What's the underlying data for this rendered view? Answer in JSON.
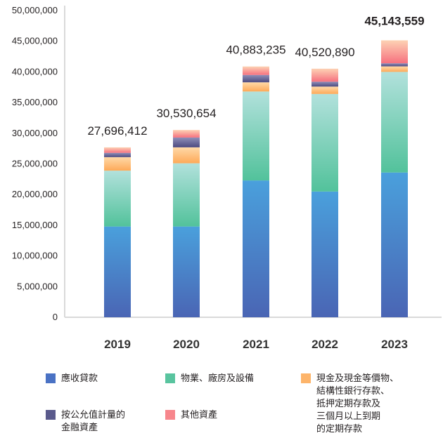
{
  "chart_data": {
    "type": "bar",
    "stacked": true,
    "categories": [
      "2019",
      "2020",
      "2021",
      "2022",
      "2023"
    ],
    "totals": [
      "27,696,412",
      "30,530,654",
      "40,883,235",
      "40,520,890",
      "45,143,559"
    ],
    "ylim": [
      0,
      50000000
    ],
    "yticks": [
      "0",
      "5,000,000",
      "10,000,000",
      "15,000,000",
      "20,000,000",
      "25,000,000",
      "30,000,000",
      "35,000,000",
      "40,000,000",
      "45,000,000",
      "50,000,000"
    ],
    "grid": false,
    "legend_position": "bottom",
    "series": [
      {
        "name": "應收貸款",
        "color": "#4a72c4",
        "values": [
          14800000,
          14800000,
          22300000,
          20500000,
          23600000
        ]
      },
      {
        "name": "物業、廠房及設備",
        "color": "#59c49f",
        "values": [
          9100000,
          10300000,
          14500000,
          15900000,
          16400000
        ]
      },
      {
        "name": "現金及現金等價物、\n結構性銀行存款、\n抵押定期存款及\n三個月以上到期\n的定期存款",
        "color": "#fdb46a",
        "values": [
          2200000,
          2600000,
          1500000,
          1200000,
          900000
        ]
      },
      {
        "name": "按公允值計量的\n金融資產",
        "color": "#5a5a8c",
        "values": [
          700000,
          1600000,
          1200000,
          800000,
          500000
        ]
      },
      {
        "name": "其他資產",
        "color": "#f7868c",
        "values": [
          896412,
          1230654,
          1383235,
          2120890,
          3743559
        ]
      }
    ]
  }
}
